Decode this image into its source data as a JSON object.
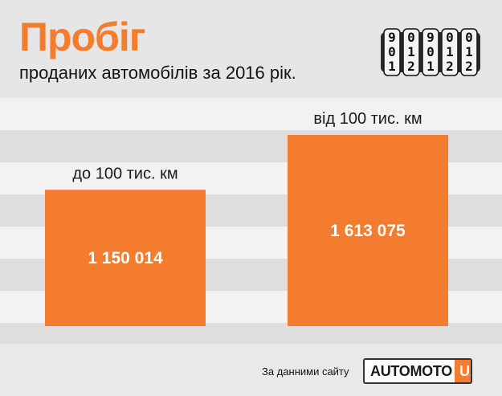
{
  "title": "Пробіг",
  "subtitle": "проданих автомобілів за 2016 рік.",
  "source_text": "За данними сайту",
  "logo": {
    "main": "AUTOMOTO",
    "accent": "UA"
  },
  "colors": {
    "accent": "#f47c2f",
    "text": "#141414",
    "stripe_dark": "#dedede",
    "stripe_light": "#f2f2f2"
  },
  "odometer": {
    "columns": [
      [
        "9",
        "0",
        "1"
      ],
      [
        "0",
        "1",
        "2"
      ],
      [
        "9",
        "0",
        "1"
      ],
      [
        "0",
        "1",
        "2"
      ],
      [
        "0",
        "1",
        "2"
      ]
    ],
    "icon": "odometer-icon"
  },
  "chart_data": {
    "type": "bar",
    "categories": [
      "до 100 тис. км",
      "від 100 тис. км"
    ],
    "values": [
      1150014,
      1613075
    ],
    "value_labels": [
      "1 150 014",
      "1 613 075"
    ],
    "title": "",
    "xlabel": "",
    "ylabel": "",
    "grid": false
  }
}
